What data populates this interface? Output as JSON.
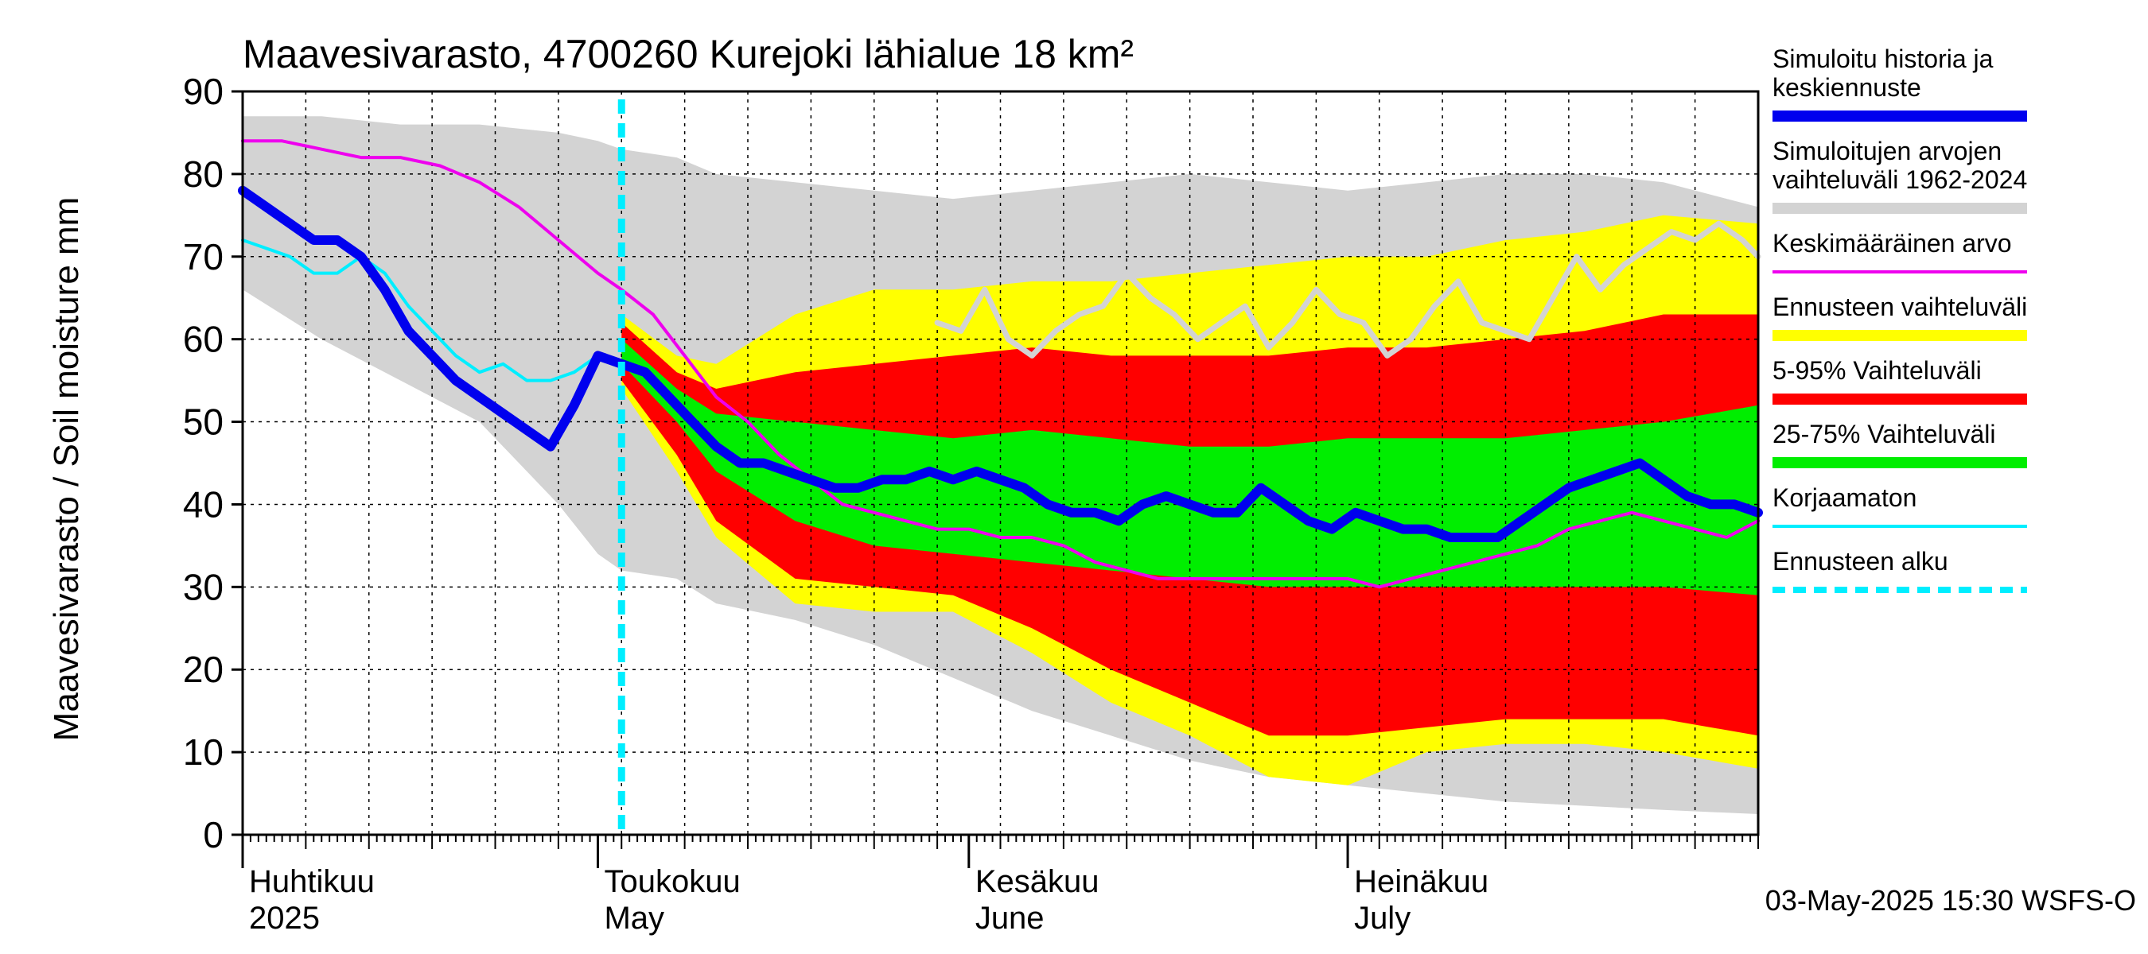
{
  "chart_data": {
    "type": "area",
    "title": "Maavesivarasto, 4700260 Kurejoki lähialue 18 km²",
    "ylabel": "Maavesivarasto / Soil moisture   mm",
    "ylim": [
      0,
      90
    ],
    "yticks": [
      0,
      10,
      20,
      30,
      40,
      50,
      60,
      70,
      80,
      90
    ],
    "xlim": [
      0,
      192
    ],
    "month_labels": [
      {
        "day": 0,
        "fi": "Huhtikuu",
        "en": "2025"
      },
      {
        "day": 45,
        "fi": "Toukokuu",
        "en": "May"
      },
      {
        "day": 92,
        "fi": "Kesäkuu",
        "en": "June"
      },
      {
        "day": 140,
        "fi": "Heinäkuu",
        "en": "July"
      }
    ],
    "forecast_start_day": 48,
    "grid": true,
    "legend_position": "right",
    "footer": "03-May-2025 15:30 WSFS-O",
    "colors": {
      "history": "#0000ee",
      "hist_range": "#d3d3d3",
      "mean": "#ee00ee",
      "forecast_range": "#ffff00",
      "p5_95": "#ff0000",
      "p25_75": "#00ee00",
      "uncorrected": "#00eeff",
      "forecast_start": "#00eeff"
    },
    "legend": [
      {
        "label_lines": [
          "Simuloitu historia ja",
          "keskiennuste"
        ],
        "color": "#0000ee",
        "kind": "thick"
      },
      {
        "label_lines": [
          "Simuloitujen arvojen",
          "vaihteluväli 1962-2024"
        ],
        "color": "#d3d3d3",
        "kind": "thick"
      },
      {
        "label_lines": [
          "Keskimääräinen arvo"
        ],
        "color": "#ee00ee",
        "kind": "thin"
      },
      {
        "label_lines": [
          "Ennusteen vaihteluväli"
        ],
        "color": "#ffff00",
        "kind": "thick"
      },
      {
        "label_lines": [
          "5-95% Vaihteluväli"
        ],
        "color": "#ff0000",
        "kind": "thick"
      },
      {
        "label_lines": [
          "25-75% Vaihteluväli"
        ],
        "color": "#00ee00",
        "kind": "thick"
      },
      {
        "label_lines": [
          "Korjaamaton"
        ],
        "color": "#00eeff",
        "kind": "thin"
      },
      {
        "label_lines": [
          "Ennusteen alku"
        ],
        "color": "#00eeff",
        "kind": "dashed"
      }
    ],
    "hist_range": {
      "x": [
        0,
        10,
        20,
        30,
        40,
        45,
        48,
        55,
        60,
        70,
        80,
        90,
        100,
        110,
        120,
        130,
        140,
        150,
        160,
        170,
        180,
        192
      ],
      "upper": [
        87,
        87,
        86,
        86,
        85,
        84,
        83,
        82,
        80,
        79,
        78,
        77,
        78,
        79,
        80,
        79,
        78,
        79,
        80,
        80,
        79,
        76
      ],
      "lower": [
        66,
        60,
        55,
        50,
        40,
        34,
        32,
        31,
        28,
        26,
        23,
        19,
        15,
        12,
        9,
        7,
        6,
        5,
        4,
        3.5,
        3,
        2.5
      ]
    },
    "forecast_bands": {
      "x": [
        48,
        55,
        60,
        70,
        80,
        90,
        100,
        110,
        120,
        130,
        140,
        150,
        160,
        170,
        180,
        192
      ],
      "yellow_upper": [
        63,
        58,
        57,
        63,
        66,
        66,
        67,
        67,
        68,
        69,
        70,
        70,
        72,
        73,
        75,
        74
      ],
      "p95": [
        62,
        56,
        54,
        56,
        57,
        58,
        59,
        58,
        58,
        58,
        59,
        59,
        60,
        61,
        63,
        63
      ],
      "p75": [
        60,
        54,
        51,
        50,
        49,
        48,
        49,
        48,
        47,
        47,
        48,
        48,
        48,
        49,
        50,
        52
      ],
      "p25": [
        57,
        50,
        44,
        38,
        35,
        34,
        33,
        32,
        31,
        30,
        30,
        30,
        30,
        30,
        30,
        29
      ],
      "p5": [
        55,
        46,
        38,
        31,
        30,
        29,
        25,
        20,
        16,
        12,
        12,
        13,
        14,
        14,
        14,
        12
      ],
      "yellow_lower": [
        54,
        44,
        36,
        28,
        27,
        27,
        22,
        16,
        12,
        7,
        6,
        10,
        11,
        11,
        10,
        8
      ]
    },
    "series": [
      {
        "name": "Simuloitu historia ja keskiennuste",
        "x": [
          0,
          3,
          6,
          9,
          12,
          15,
          18,
          21,
          24,
          27,
          30,
          33,
          36,
          39,
          42,
          45,
          48,
          51,
          54,
          57,
          60,
          63,
          66,
          69,
          72,
          75,
          78,
          81,
          84,
          87,
          90,
          93,
          96,
          99,
          102,
          105,
          108,
          111,
          114,
          117,
          120,
          123,
          126,
          129,
          132,
          135,
          138,
          141,
          144,
          147,
          150,
          153,
          156,
          159,
          162,
          165,
          168,
          171,
          174,
          177,
          180,
          183,
          186,
          189,
          192
        ],
        "values": [
          78,
          76,
          74,
          72,
          72,
          70,
          66,
          61,
          58,
          55,
          53,
          51,
          49,
          47,
          52,
          58,
          57,
          56,
          53,
          50,
          47,
          45,
          45,
          44,
          43,
          42,
          42,
          43,
          43,
          44,
          43,
          44,
          43,
          42,
          40,
          39,
          39,
          38,
          40,
          41,
          40,
          39,
          39,
          42,
          40,
          38,
          37,
          39,
          38,
          37,
          37,
          36,
          36,
          36,
          38,
          40,
          42,
          43,
          44,
          45,
          43,
          41,
          40,
          40,
          39
        ]
      },
      {
        "name": "Keskimääräinen arvo",
        "x": [
          0,
          5,
          10,
          15,
          20,
          25,
          30,
          35,
          40,
          45,
          48,
          52,
          56,
          60,
          64,
          68,
          72,
          76,
          80,
          84,
          88,
          92,
          96,
          100,
          104,
          108,
          112,
          116,
          120,
          124,
          128,
          132,
          136,
          140,
          144,
          148,
          152,
          156,
          160,
          164,
          168,
          172,
          176,
          180,
          184,
          188,
          192
        ],
        "values": [
          84,
          84,
          83,
          82,
          82,
          81,
          79,
          76,
          72,
          68,
          66,
          63,
          58,
          53,
          50,
          46,
          43,
          40,
          39,
          38,
          37,
          37,
          36,
          36,
          35,
          33,
          32,
          31,
          31,
          31,
          31,
          31,
          31,
          31,
          30,
          31,
          32,
          33,
          34,
          35,
          37,
          38,
          39,
          38,
          37,
          36,
          38
        ]
      },
      {
        "name": "Korjaamaton",
        "x": [
          0,
          3,
          6,
          9,
          12,
          15,
          18,
          21,
          24,
          27,
          30,
          33,
          36,
          39,
          42,
          45,
          48
        ],
        "values": [
          72,
          71,
          70,
          68,
          68,
          70,
          68,
          64,
          61,
          58,
          56,
          57,
          55,
          55,
          56,
          58,
          57
        ]
      },
      {
        "name": "Simuloitujen arvojen maksimi (ennustejakso)",
        "x": [
          88,
          91,
          94,
          97,
          100,
          103,
          106,
          109,
          112,
          115,
          118,
          121,
          124,
          127,
          130,
          133,
          136,
          139,
          142,
          145,
          148,
          151,
          154,
          157,
          160,
          163,
          166,
          169,
          172,
          175,
          178,
          181,
          184,
          187,
          190,
          192
        ],
        "values": [
          62,
          61,
          66,
          60,
          58,
          61,
          63,
          64,
          68,
          65,
          63,
          60,
          62,
          64,
          59,
          62,
          66,
          63,
          62,
          58,
          60,
          64,
          67,
          62,
          61,
          60,
          65,
          70,
          66,
          69,
          71,
          73,
          72,
          74,
          72,
          70
        ]
      }
    ]
  }
}
